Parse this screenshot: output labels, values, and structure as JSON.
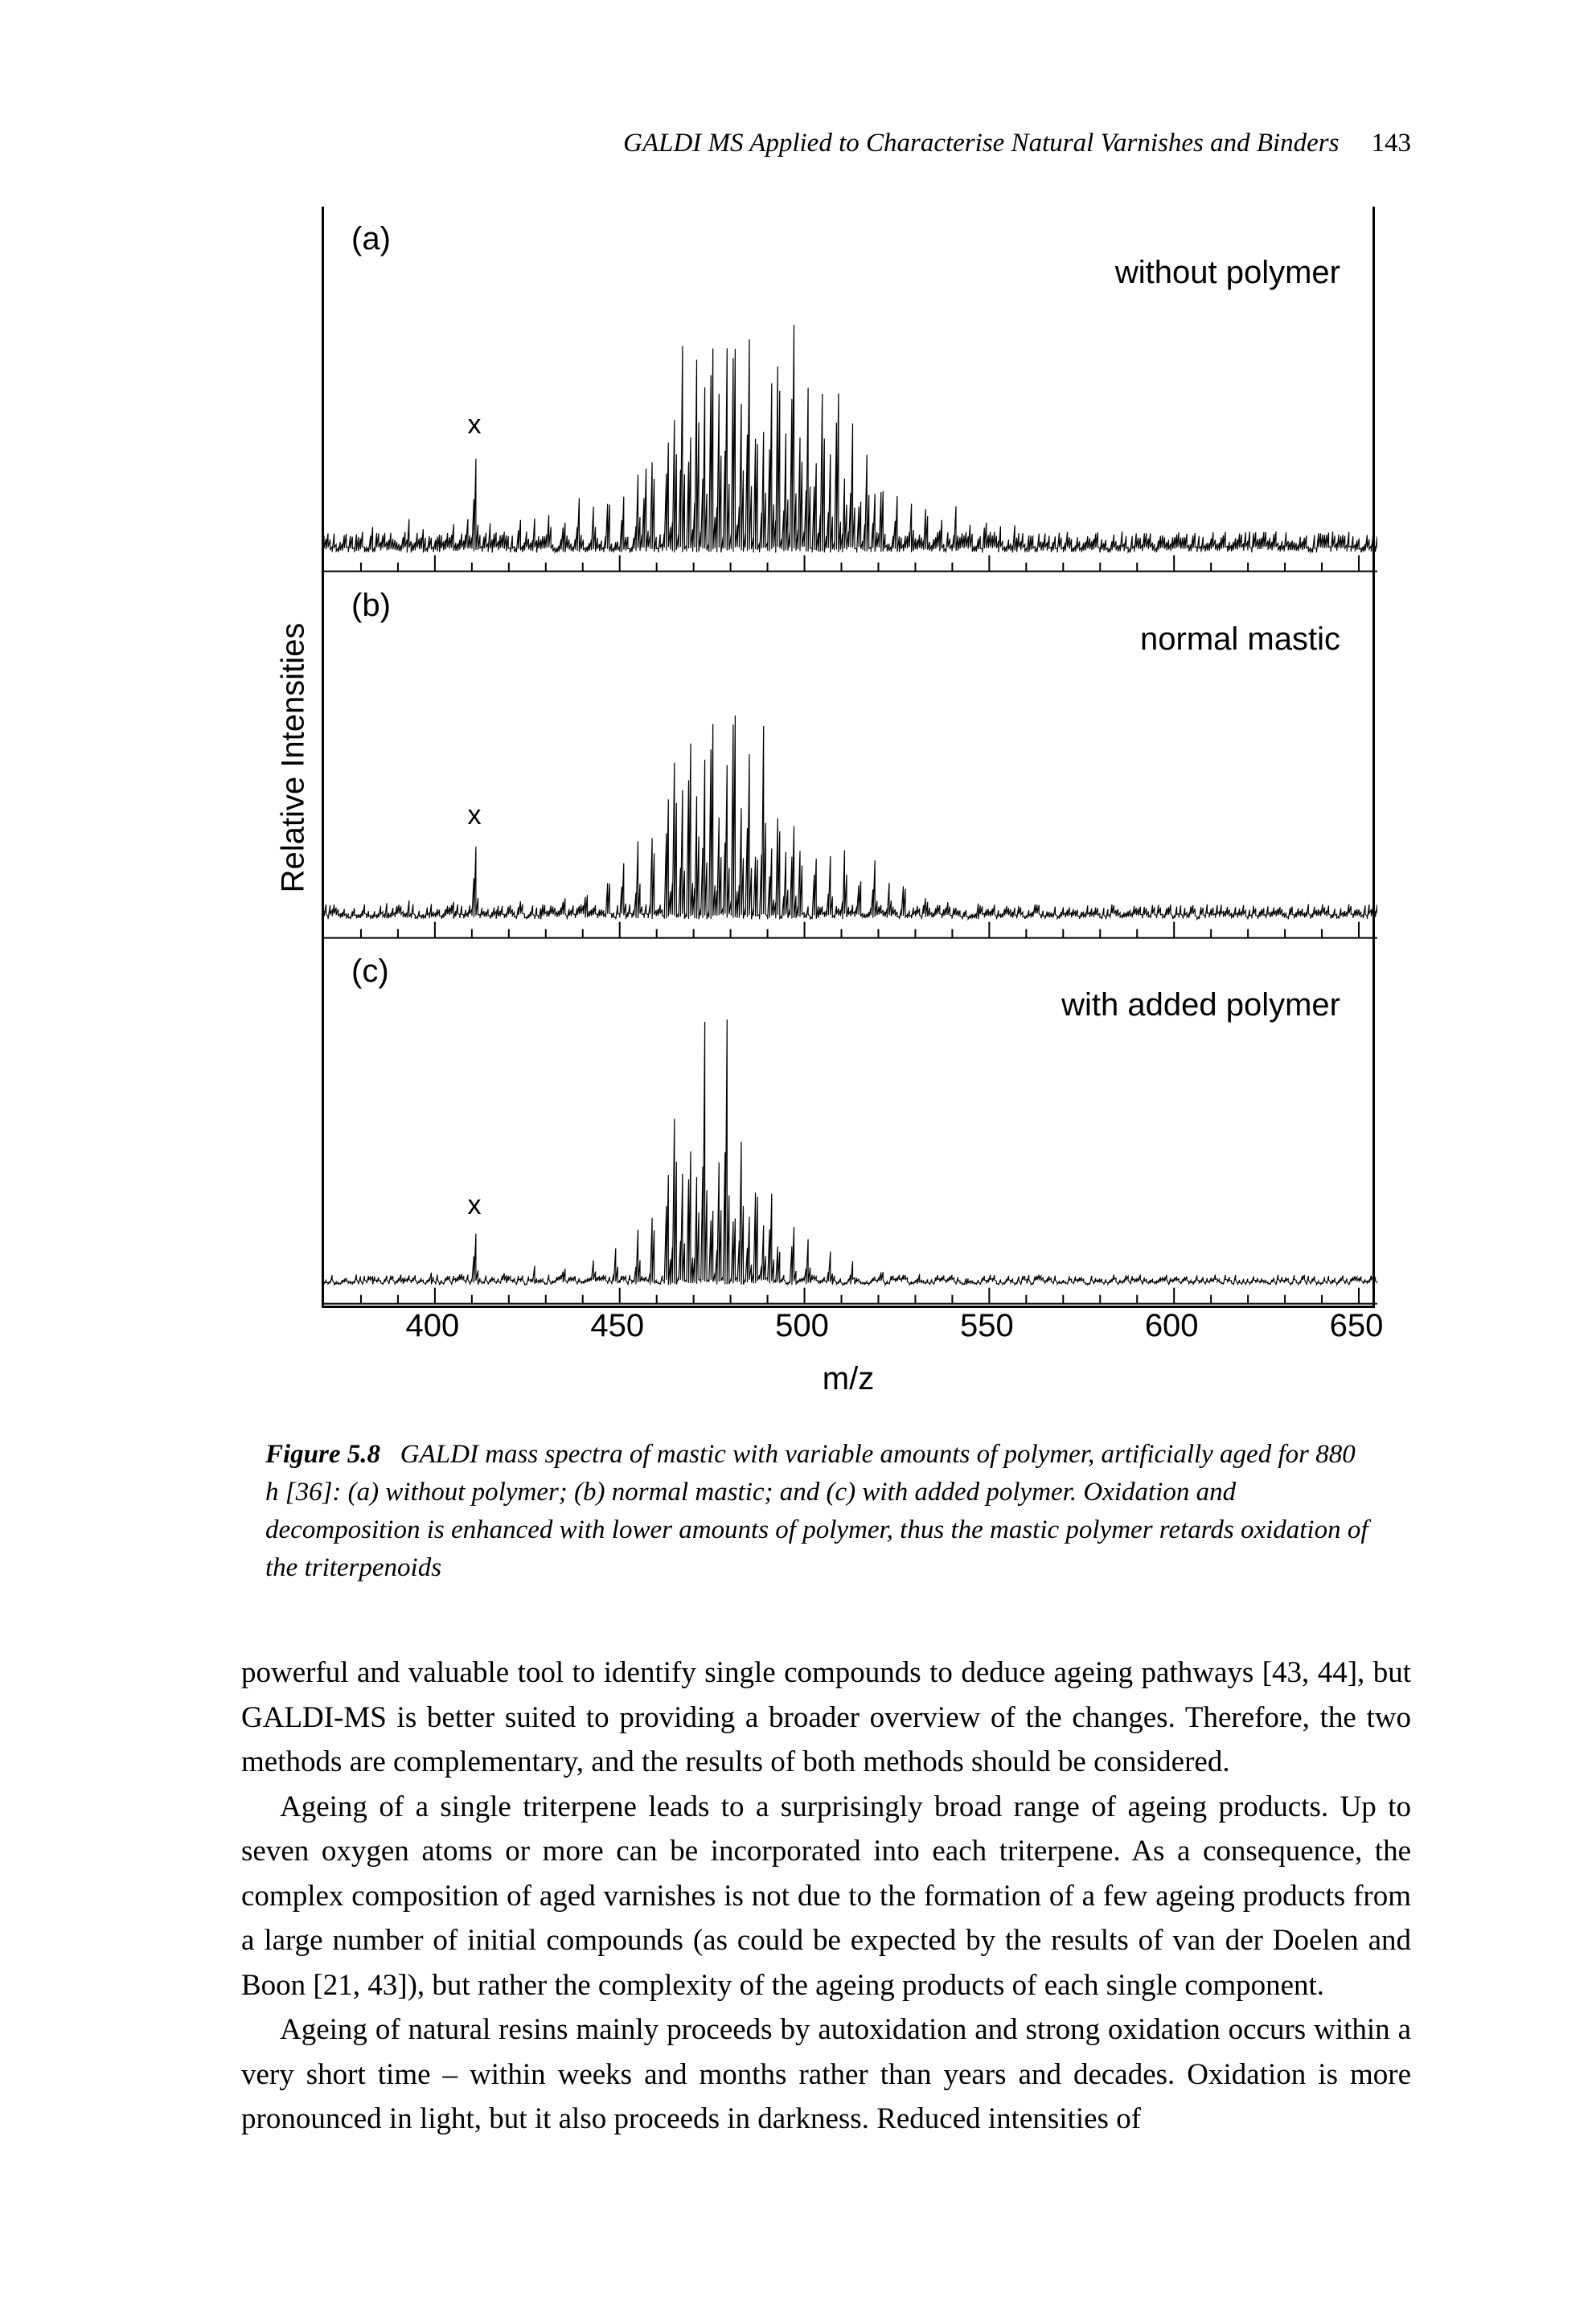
{
  "header": {
    "running_title": "GALDI MS Applied to Characterise Natural Varnishes and Binders",
    "page_number": "143"
  },
  "figure": {
    "ylabel": "Relative Intensities",
    "xlabel": "m/z",
    "xlim": [
      370,
      655
    ],
    "xtick_values": [
      400,
      450,
      500,
      550,
      600,
      650
    ],
    "panels": [
      {
        "letter": "(a)",
        "label": "without polymer",
        "x_marker_mz": 411,
        "peaks_mz": [
          379,
          383,
          388,
          393,
          397,
          401,
          405,
          409,
          411,
          415,
          419,
          423,
          427,
          431,
          435,
          439,
          443,
          447,
          451,
          455,
          457,
          459,
          463,
          465,
          467,
          469,
          471,
          473,
          475,
          477,
          479,
          481,
          483,
          485,
          487,
          489,
          491,
          493,
          495,
          497,
          499,
          501,
          503,
          505,
          507,
          509,
          511,
          513,
          515,
          517,
          519,
          521,
          525,
          529,
          533,
          537,
          541,
          545,
          549,
          553,
          557,
          561,
          565,
          572,
          579,
          586,
          593,
          602,
          611,
          623,
          636
        ],
        "peaks_h": [
          0.09,
          0.11,
          0.08,
          0.12,
          0.1,
          0.09,
          0.11,
          0.13,
          0.36,
          0.11,
          0.1,
          0.14,
          0.12,
          0.16,
          0.14,
          0.2,
          0.18,
          0.24,
          0.22,
          0.28,
          0.34,
          0.4,
          0.46,
          0.56,
          0.7,
          0.5,
          0.78,
          0.58,
          0.92,
          0.62,
          0.74,
          0.96,
          0.56,
          0.8,
          0.54,
          0.44,
          0.66,
          0.84,
          0.42,
          0.92,
          0.5,
          0.56,
          0.38,
          0.66,
          0.34,
          0.7,
          0.3,
          0.46,
          0.24,
          0.38,
          0.22,
          0.3,
          0.22,
          0.18,
          0.2,
          0.14,
          0.16,
          0.12,
          0.14,
          0.1,
          0.11,
          0.09,
          0.08,
          0.07,
          0.06,
          0.05,
          0.05,
          0.04,
          0.04,
          0.03,
          0.03
        ]
      },
      {
        "letter": "(b)",
        "label": "normal mastic",
        "x_marker_mz": 411,
        "peaks_mz": [
          381,
          387,
          393,
          399,
          405,
          411,
          417,
          423,
          429,
          435,
          441,
          447,
          451,
          455,
          459,
          463,
          465,
          467,
          469,
          471,
          473,
          475,
          477,
          479,
          481,
          483,
          485,
          487,
          489,
          491,
          493,
          495,
          497,
          499,
          503,
          507,
          511,
          515,
          519,
          523,
          527,
          533,
          539,
          547,
          556,
          566,
          578,
          592,
          610,
          630
        ],
        "peaks_h": [
          0.05,
          0.06,
          0.07,
          0.06,
          0.07,
          0.28,
          0.06,
          0.08,
          0.07,
          0.1,
          0.12,
          0.18,
          0.22,
          0.28,
          0.36,
          0.5,
          0.66,
          0.44,
          0.76,
          0.5,
          0.56,
          0.88,
          0.4,
          0.56,
          0.96,
          0.42,
          0.62,
          0.3,
          0.7,
          0.28,
          0.46,
          0.24,
          0.38,
          0.3,
          0.26,
          0.22,
          0.28,
          0.18,
          0.22,
          0.14,
          0.16,
          0.1,
          0.08,
          0.06,
          0.05,
          0.04,
          0.04,
          0.03,
          0.03,
          0.02
        ]
      },
      {
        "letter": "(c)",
        "label": "with added polymer",
        "x_marker_mz": 411,
        "peaks_mz": [
          383,
          391,
          399,
          407,
          411,
          419,
          427,
          435,
          443,
          449,
          455,
          459,
          463,
          465,
          467,
          469,
          471,
          473,
          475,
          477,
          479,
          481,
          483,
          485,
          487,
          489,
          491,
          493,
          497,
          501,
          507,
          513,
          521,
          531,
          544,
          560,
          580,
          605
        ],
        "peaks_h": [
          0.04,
          0.05,
          0.05,
          0.06,
          0.2,
          0.06,
          0.07,
          0.08,
          0.1,
          0.14,
          0.2,
          0.3,
          0.46,
          0.7,
          0.38,
          0.58,
          0.44,
          0.92,
          0.34,
          0.48,
          0.96,
          0.32,
          0.54,
          0.26,
          0.44,
          0.22,
          0.36,
          0.18,
          0.24,
          0.16,
          0.12,
          0.09,
          0.07,
          0.05,
          0.04,
          0.03,
          0.03,
          0.02
        ]
      }
    ],
    "style": {
      "stroke": "#000000",
      "stroke_width": 1.2,
      "background": "#ffffff",
      "font_family": "Arial",
      "axis_fontsize": 40,
      "letter_fontsize": 40,
      "label_fontsize": 40,
      "baseline_noise": 0.03
    }
  },
  "caption": {
    "label": "Figure 5.8",
    "text": "GALDI mass spectra of mastic with variable amounts of polymer, artificially aged for 880 h [36]: (a) without polymer; (b) normal mastic; and (c) with added polymer. Oxidation and decomposition is enhanced with lower amounts of polymer, thus the mastic polymer retards oxidation of the triterpenoids"
  },
  "body": {
    "p1": "powerful and valuable tool to identify single compounds to deduce ageing pathways [43, 44], but GALDI-MS is better suited to providing a broader overview of the changes. Therefore, the two methods are complementary, and the results of both methods should be considered.",
    "p2": "Ageing of a single triterpene leads to a surprisingly broad range of ageing products. Up to seven oxygen atoms or more can be incorporated into each triterpene. As a consequence, the complex composition of aged varnishes is not due to the formation of a few ageing products from a large number of initial compounds (as could be expected by the results of van der Doelen and Boon [21, 43]), but rather the complexity of the ageing products of each single component.",
    "p3": "Ageing of natural resins mainly proceeds by autoxidation and strong oxidation occurs within a very short time – within weeks and months rather than years and decades. Oxidation is more pronounced in light, but it also proceeds in darkness. Reduced intensities of"
  }
}
